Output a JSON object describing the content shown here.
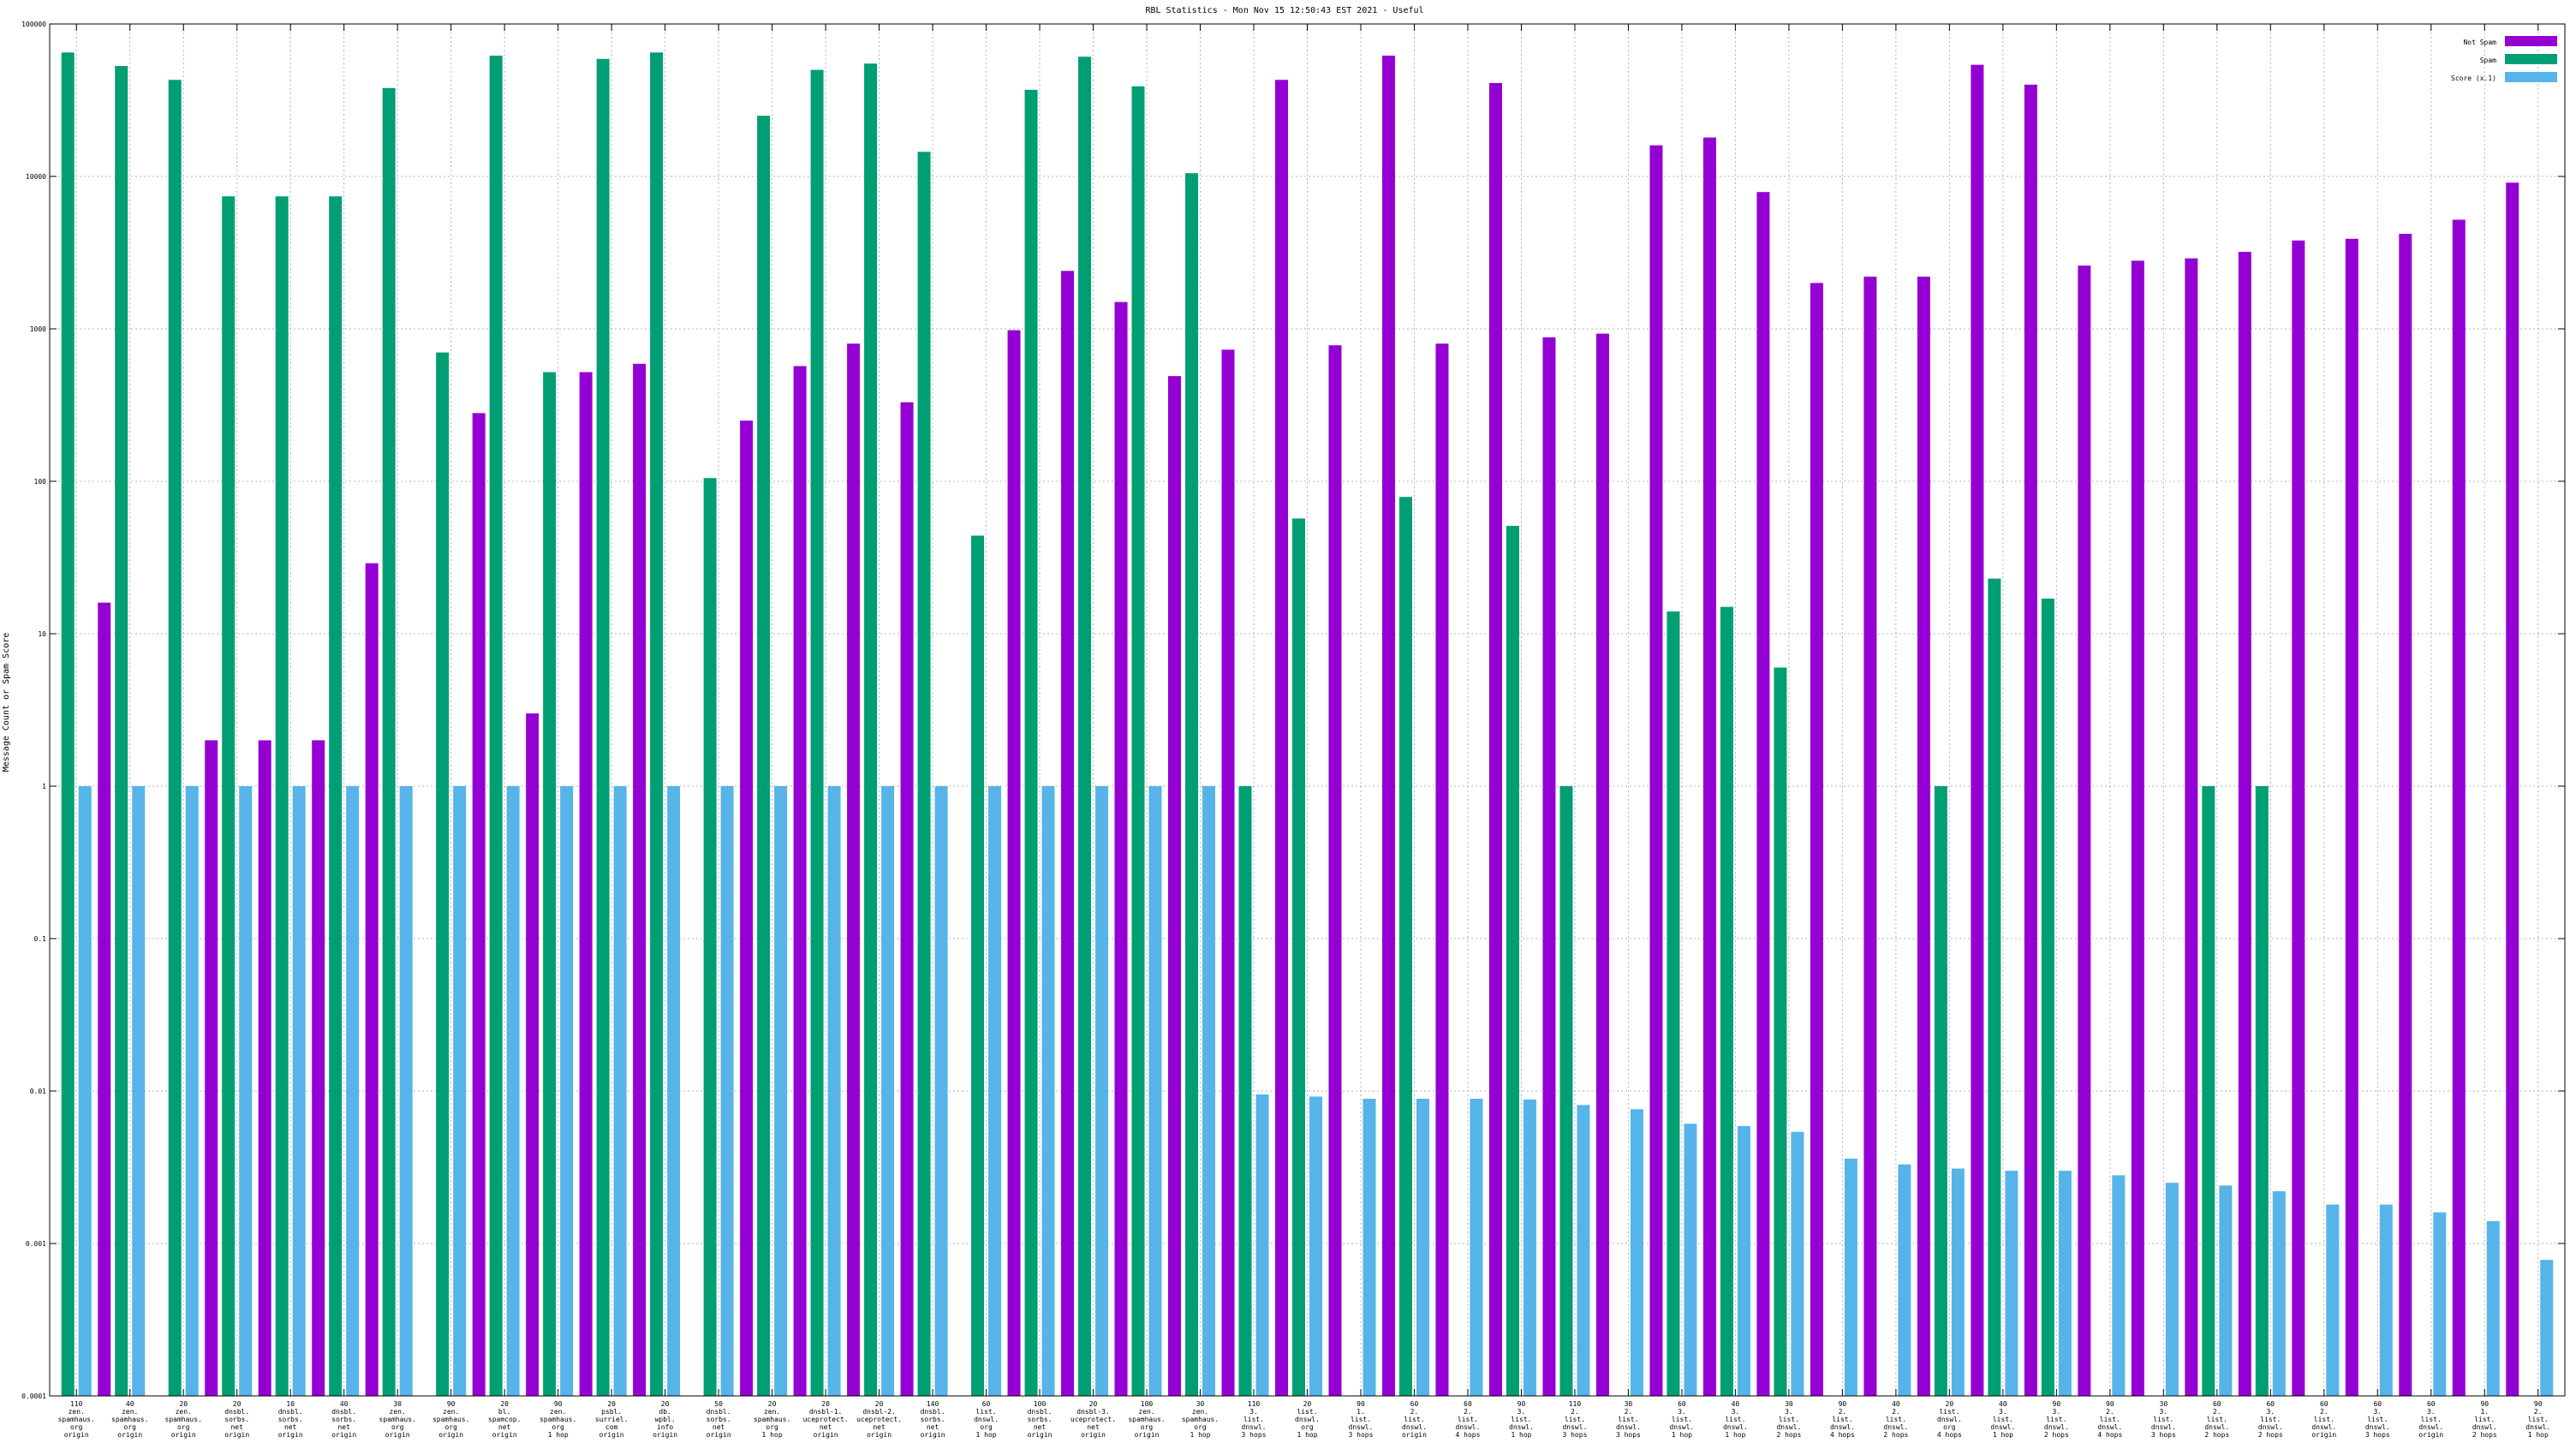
{
  "chart_data": {
    "type": "bar",
    "title": "RBL Statistics - Mon Nov 15 12:50:43 EST 2021 - Useful",
    "xlabel": "",
    "ylabel": "Message Count or Spam Score",
    "yscale": "log",
    "ylim": [
      0.0001,
      100000
    ],
    "yticks": [
      "0.0001",
      "0.001",
      "0.01",
      "0.1",
      "1",
      "10",
      "100",
      "1000",
      "10000",
      "100000"
    ],
    "grid": true,
    "legend_position": "top-right",
    "categories": [
      [
        "110",
        "zen.",
        "spamhaus.",
        "org",
        "origin"
      ],
      [
        "40",
        "zen.",
        "spamhaus.",
        "org",
        "origin"
      ],
      [
        "20",
        "zen.",
        "spamhaus.",
        "org",
        "origin"
      ],
      [
        "20",
        "dnsbl.",
        "sorbs.",
        "net",
        "origin"
      ],
      [
        "10",
        "dnsbl.",
        "sorbs.",
        "net",
        "origin"
      ],
      [
        "40",
        "dnsbl.",
        "sorbs.",
        "net",
        "origin"
      ],
      [
        "30",
        "zen.",
        "spamhaus.",
        "org",
        "origin"
      ],
      [
        "90",
        "zen.",
        "spamhaus.",
        "org",
        "origin"
      ],
      [
        "20",
        "bl.",
        "spamcop.",
        "net",
        "origin"
      ],
      [
        "90",
        "zen.",
        "spamhaus.",
        "org",
        "1 hop"
      ],
      [
        "20",
        "psbl.",
        "surriel.",
        "com",
        "origin"
      ],
      [
        "20",
        "db.",
        "wpbl.",
        "info",
        "origin"
      ],
      [
        "50",
        "dnsbl.",
        "sorbs.",
        "net",
        "origin"
      ],
      [
        "20",
        "zen.",
        "spamhaus.",
        "org",
        "1 hop"
      ],
      [
        "20",
        "dnsbl-1.",
        "uceprotect.",
        "net",
        "origin"
      ],
      [
        "20",
        "dnsbl-2.",
        "uceprotect.",
        "net",
        "origin"
      ],
      [
        "140",
        "dnsbl.",
        "sorbs.",
        "net",
        "origin"
      ],
      [
        "60",
        "list.",
        "dnswl.",
        "org",
        "1 hop"
      ],
      [
        "100",
        "dnsbl.",
        "sorbs.",
        "net",
        "origin"
      ],
      [
        "20",
        "dnsbl-3.",
        "uceprotect.",
        "net",
        "origin"
      ],
      [
        "100",
        "zen.",
        "spamhaus.",
        "org",
        "origin"
      ],
      [
        "30",
        "zen.",
        "spamhaus.",
        "org",
        "1 hop"
      ],
      [
        "110",
        "3.",
        "list.",
        "dnswl.",
        "3 hops"
      ],
      [
        "20",
        "list.",
        "dnswl.",
        "org",
        "1 hop"
      ],
      [
        "90",
        "1.",
        "list.",
        "dnswl.",
        "3 hops"
      ],
      [
        "60",
        "2.",
        "list.",
        "dnswl.",
        "origin"
      ],
      [
        "60",
        "2.",
        "list.",
        "dnswl.",
        "4 hops"
      ],
      [
        "90",
        "3.",
        "list.",
        "dnswl.",
        "1 hop"
      ],
      [
        "110",
        "2.",
        "list.",
        "dnswl.",
        "3 hops"
      ],
      [
        "30",
        "2.",
        "list.",
        "dnswl.",
        "3 hops"
      ],
      [
        "60",
        "3.",
        "list.",
        "dnswl.",
        "1 hop"
      ],
      [
        "40",
        "3.",
        "list.",
        "dnswl.",
        "1 hop"
      ],
      [
        "30",
        "3.",
        "list.",
        "dnswl.",
        "2 hops"
      ],
      [
        "90",
        "2.",
        "list.",
        "dnswl.",
        "4 hops"
      ],
      [
        "40",
        "2.",
        "list.",
        "dnswl.",
        "2 hops"
      ],
      [
        "20",
        "list.",
        "dnswl.",
        "org",
        "4 hops"
      ],
      [
        "40",
        "3.",
        "list.",
        "dnswl.",
        "1 hop"
      ],
      [
        "90",
        "3.",
        "list.",
        "dnswl.",
        "2 hops"
      ],
      [
        "90",
        "2.",
        "list.",
        "dnswl.",
        "4 hops"
      ],
      [
        "30",
        "3.",
        "list.",
        "dnswl.",
        "3 hops"
      ],
      [
        "60",
        "2.",
        "list.",
        "dnswl.",
        "2 hops"
      ],
      [
        "60",
        "3.",
        "list.",
        "dnswl.",
        "2 hops"
      ],
      [
        "60",
        "2.",
        "list.",
        "dnswl.",
        "origin"
      ],
      [
        "60",
        "3.",
        "list.",
        "dnswl.",
        "3 hops"
      ],
      [
        "60",
        "3.",
        "list.",
        "dnswl.",
        "origin"
      ],
      [
        "90",
        "1.",
        "list.",
        "dnswl.",
        "2 hops"
      ],
      [
        "90",
        "2.",
        "list.",
        "dnswl.",
        "1 hop"
      ]
    ],
    "series": [
      {
        "name": "Not Spam",
        "color": "#9400d3",
        "values": [
          null,
          16,
          null,
          2,
          2,
          2,
          29,
          null,
          280,
          3,
          520,
          590,
          null,
          250,
          570,
          800,
          330,
          null,
          980,
          2400,
          1500,
          490,
          730,
          43000,
          780,
          62000,
          800,
          41000,
          880,
          930,
          16000,
          18000,
          7900,
          2000,
          2200,
          2200,
          54000,
          40000,
          2600,
          2800,
          2900,
          3200,
          3800,
          3900,
          4200,
          5200,
          9100
        ]
      },
      {
        "name": "Spam",
        "color": "#009e73",
        "values": [
          65000,
          53000,
          43000,
          7400,
          7400,
          7400,
          38000,
          700,
          62000,
          520,
          59000,
          65000,
          105,
          25000,
          50000,
          55000,
          14500,
          44,
          37000,
          61000,
          39000,
          10500,
          1,
          57,
          null,
          79,
          null,
          51,
          1,
          null,
          14,
          15,
          6,
          null,
          null,
          1,
          23,
          17,
          null,
          null,
          1,
          1,
          null,
          null,
          null,
          null,
          null
        ]
      },
      {
        "name": "Score (x.1)",
        "color": "#56b4e9",
        "values": [
          1,
          1,
          1,
          1,
          1,
          1,
          1,
          1,
          1,
          1,
          1,
          1,
          1,
          1,
          1,
          1,
          1,
          1,
          1,
          1,
          1,
          1,
          0.0095,
          0.0092,
          0.0089,
          0.0089,
          0.0089,
          0.0088,
          0.0081,
          0.0076,
          0.0061,
          0.0059,
          0.0054,
          0.0036,
          0.0033,
          0.0031,
          0.003,
          0.003,
          0.0028,
          0.0025,
          0.0024,
          0.0022,
          0.0018,
          0.0018,
          0.0016,
          0.0014,
          0.00078
        ]
      }
    ]
  }
}
